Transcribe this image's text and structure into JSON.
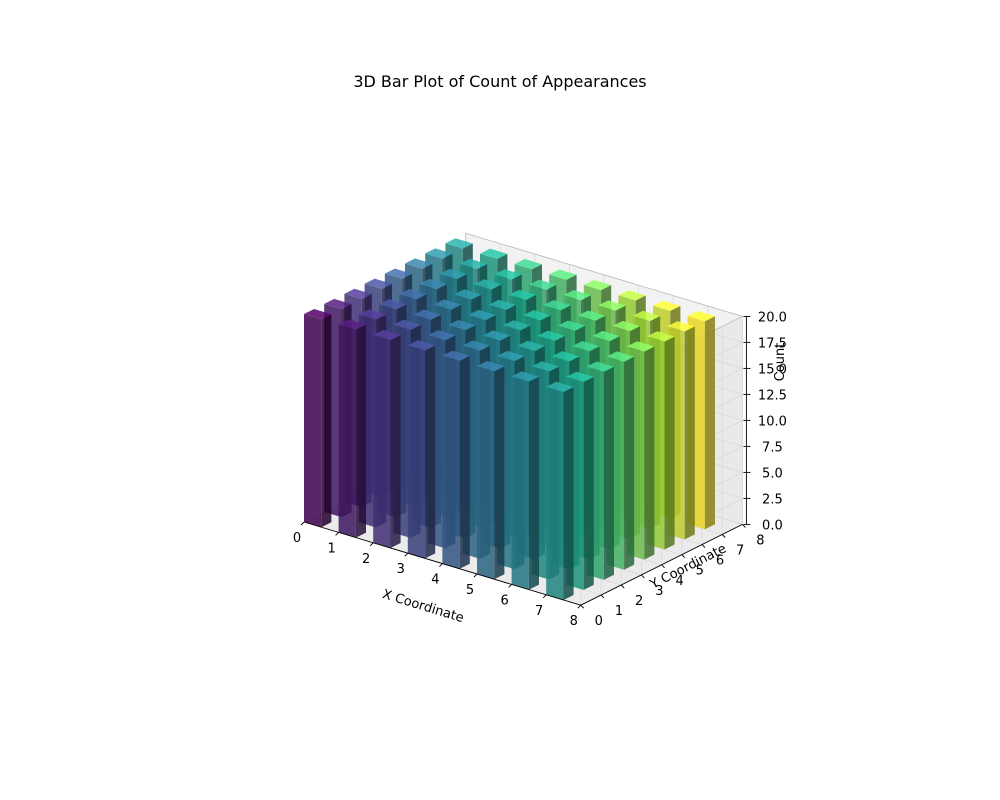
{
  "chart_data": {
    "type": "bar3d",
    "title": "3D Bar Plot of Count of Appearances",
    "xlabel": "X Coordinate",
    "ylabel": "Y Coordinate",
    "zlabel": "Count",
    "x": [
      0,
      1,
      2,
      3,
      4,
      5,
      6,
      7
    ],
    "y": [
      0,
      1,
      2,
      3,
      4,
      5,
      6,
      7
    ],
    "bar_size": 0.5,
    "counts": [
      [
        20,
        20,
        20,
        20,
        20,
        20,
        20,
        20
      ],
      [
        20,
        20,
        20,
        20,
        20,
        20,
        20,
        20
      ],
      [
        20,
        20,
        20,
        20,
        20,
        20,
        20,
        20
      ],
      [
        20,
        20,
        20,
        20,
        20,
        20,
        20,
        20
      ],
      [
        20,
        20,
        20,
        20,
        20,
        20,
        20,
        20
      ],
      [
        20,
        20,
        20,
        20,
        20,
        20,
        20,
        20
      ],
      [
        20,
        20,
        20,
        20,
        20,
        20,
        20,
        20
      ],
      [
        20,
        20,
        20,
        20,
        20,
        20,
        20,
        20
      ]
    ],
    "xlim": [
      0,
      8
    ],
    "ylim": [
      0,
      8
    ],
    "zlim": [
      0,
      20
    ],
    "xticks": [
      "0",
      "1",
      "2",
      "3",
      "4",
      "5",
      "6",
      "7",
      "8"
    ],
    "yticks": [
      "0",
      "1",
      "2",
      "3",
      "4",
      "5",
      "6",
      "7",
      "8"
    ],
    "zticks": [
      "0.0",
      "2.5",
      "5.0",
      "7.5",
      "10.0",
      "12.5",
      "15.0",
      "17.5",
      "20.0"
    ],
    "colormap": "viridis",
    "colors": [
      "#440154",
      "#46327e",
      "#365c8d",
      "#277f8e",
      "#1fa187",
      "#4ac16d",
      "#a0da39",
      "#fde725"
    ],
    "grid": true
  }
}
